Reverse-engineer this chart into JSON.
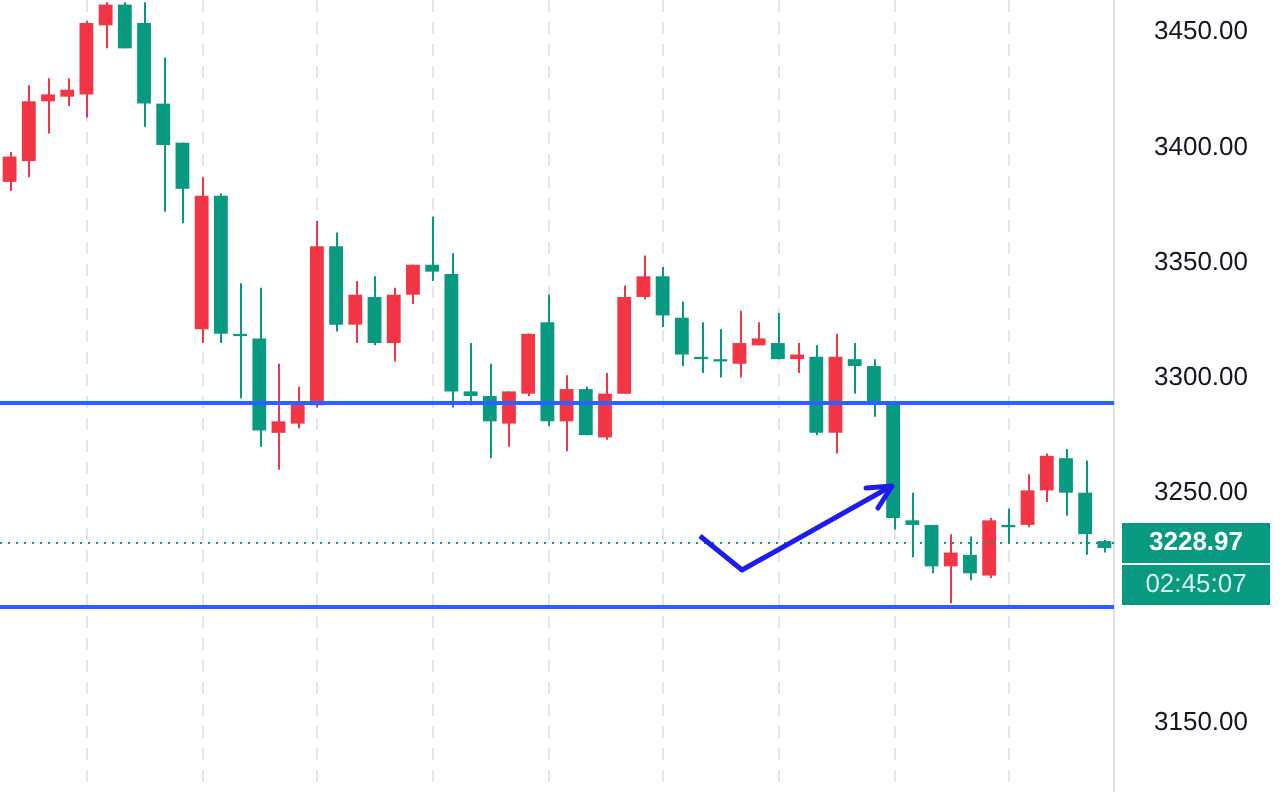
{
  "chart_data": {
    "type": "candlestick",
    "categories": [
      null,
      null,
      null,
      null,
      null,
      null,
      null,
      null,
      null,
      null,
      null,
      null,
      null,
      null,
      null,
      null,
      null,
      null,
      null,
      null,
      null,
      null,
      null,
      null,
      null,
      null,
      null,
      null,
      null,
      null,
      null,
      null,
      null,
      null,
      null,
      null,
      null,
      null,
      null,
      null,
      null,
      null,
      null,
      null,
      null,
      null,
      null,
      null,
      null,
      null,
      null,
      null,
      null,
      null,
      null,
      null,
      null,
      null
    ],
    "ohlc": [
      [
        3396,
        3398,
        3381,
        3385
      ],
      [
        3420,
        3427,
        3387,
        3394
      ],
      [
        3423,
        3430,
        3406,
        3420
      ],
      [
        3425,
        3430,
        3418,
        3422
      ],
      [
        3454,
        3455,
        3413,
        3423
      ],
      [
        3462,
        3463,
        3443,
        3453
      ],
      [
        3443,
        3463,
        3443,
        3462
      ],
      [
        3419,
        3463,
        3409,
        3454
      ],
      [
        3401,
        3439,
        3372,
        3419
      ],
      [
        3382,
        3402,
        3367,
        3402
      ],
      [
        3379,
        3387,
        3315,
        3321
      ],
      [
        3319,
        3380,
        3315,
        3379
      ],
      [
        3318,
        3341,
        3291,
        3319
      ],
      [
        3277,
        3339,
        3270,
        3317
      ],
      [
        3281,
        3306,
        3260,
        3276
      ],
      [
        3289,
        3296,
        3278,
        3280
      ],
      [
        3357,
        3368,
        3287,
        3288
      ],
      [
        3323,
        3363,
        3320,
        3357
      ],
      [
        3336,
        3342,
        3315,
        3323
      ],
      [
        3315,
        3344,
        3314,
        3335
      ],
      [
        3336,
        3339,
        3307,
        3315
      ],
      [
        3349,
        3349,
        3332,
        3336
      ],
      [
        3346,
        3370,
        3342,
        3349
      ],
      [
        3294,
        3354,
        3287,
        3345
      ],
      [
        3292,
        3315,
        3288,
        3294
      ],
      [
        3281,
        3306,
        3265,
        3292
      ],
      [
        3294,
        3294,
        3270,
        3280
      ],
      [
        3319,
        3319,
        3292,
        3293
      ],
      [
        3281,
        3336,
        3279,
        3324
      ],
      [
        3295,
        3301,
        3268,
        3281
      ],
      [
        3275,
        3296,
        3275,
        3295
      ],
      [
        3293,
        3302,
        3273,
        3274
      ],
      [
        3335,
        3340,
        3293,
        3293
      ],
      [
        3344,
        3353,
        3334,
        3335
      ],
      [
        3327,
        3348,
        3322,
        3344
      ],
      [
        3310,
        3333,
        3305,
        3326
      ],
      [
        3308,
        3324,
        3302,
        3309
      ],
      [
        3307,
        3321,
        3300,
        3308
      ],
      [
        3315,
        3329,
        3300,
        3306
      ],
      [
        3317,
        3324,
        3314,
        3314
      ],
      [
        3308,
        3328,
        3308,
        3315
      ],
      [
        3310,
        3315,
        3302,
        3308
      ],
      [
        3276,
        3314,
        3275,
        3309
      ],
      [
        3309,
        3319,
        3267,
        3276
      ],
      [
        3305,
        3315,
        3293,
        3308
      ],
      [
        3289,
        3308,
        3283,
        3305
      ],
      [
        3239,
        3289,
        3234,
        3289
      ],
      [
        3236,
        3250,
        3222,
        3238
      ],
      [
        3218,
        3236,
        3215,
        3236
      ],
      [
        3224,
        3232,
        3202,
        3218
      ],
      [
        3215,
        3231,
        3212,
        3223
      ],
      [
        3238,
        3239,
        3213,
        3214
      ],
      [
        3235,
        3243,
        3228,
        3236
      ],
      [
        3251,
        3258,
        3235,
        3236
      ],
      [
        3266,
        3267,
        3246,
        3251
      ],
      [
        3250,
        3269,
        3240,
        3265
      ],
      [
        3232,
        3264,
        3223,
        3250
      ],
      [
        3226,
        3229.5,
        3224,
        3228.97
      ]
    ],
    "ylim": [
      3120,
      3464
    ],
    "yticks": [
      {
        "value": 3150,
        "label": "3150.00"
      },
      {
        "value": 3200,
        "label": null
      },
      {
        "value": 3250,
        "label": "3250.00"
      },
      {
        "value": 3300,
        "label": "3300.00"
      },
      {
        "value": 3350,
        "label": "3350.00"
      },
      {
        "value": 3400,
        "label": "3400.00"
      },
      {
        "value": 3450,
        "label": "3450.00"
      }
    ],
    "tick_labels": "y",
    "grid": "x",
    "ref_lines": [
      {
        "axis": "y",
        "value": 3289,
        "color": "#2962ff"
      },
      {
        "axis": "y",
        "value": 3201,
        "color": "#2962ff"
      },
      {
        "axis": "y",
        "value": 3228.97,
        "label": "3228.97",
        "color": "#089981",
        "line_style": "dotted"
      }
    ],
    "annotations": [
      "02:45:07"
    ]
  }
}
